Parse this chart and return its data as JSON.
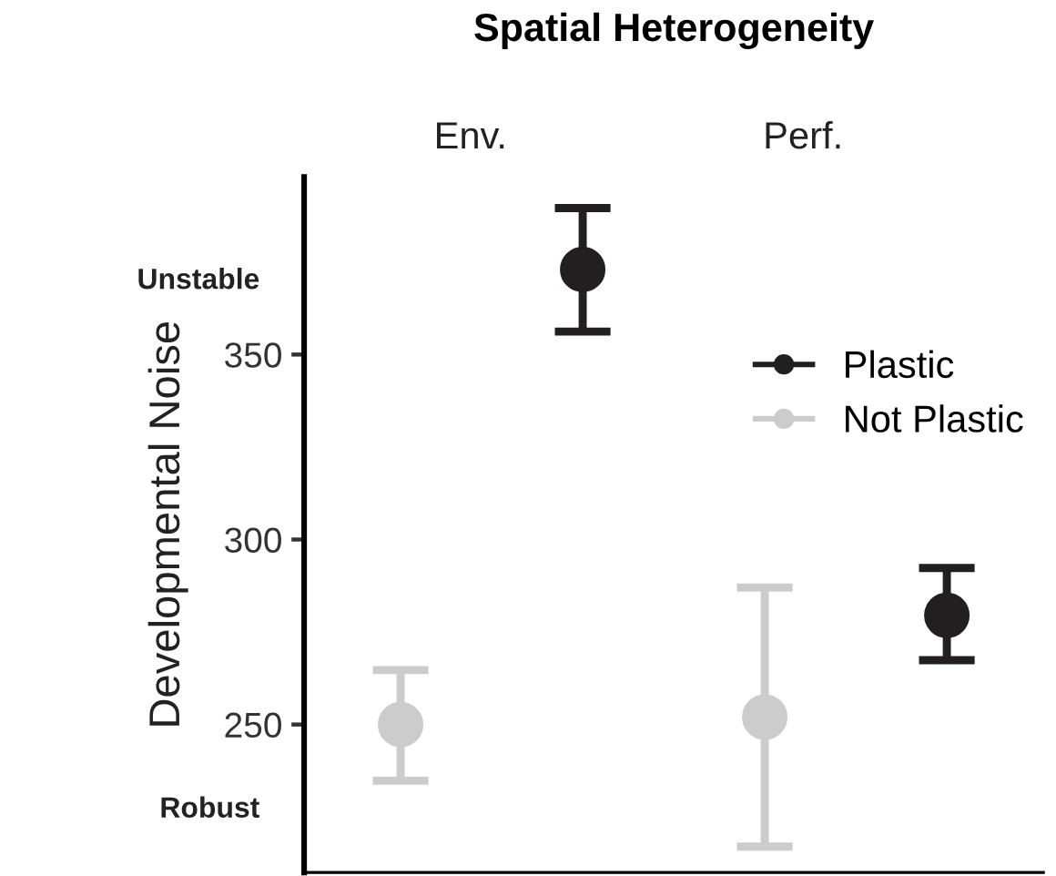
{
  "chart_data": {
    "type": "scatter",
    "title": "Spatial Heterogeneity",
    "ylabel": "Developmental Noise",
    "categories": [
      null,
      null,
      null,
      null
    ],
    "series": [
      {
        "name": "Plastic",
        "color": "#231f20",
        "values": [
          null,
          373,
          null,
          279.5
        ],
        "errors": [
          null,
          [
            356.2,
            389.6
          ],
          null,
          [
            267.4,
            292.3
          ]
        ]
      },
      {
        "name": "Not Plastic",
        "color": "#cccccc",
        "values": [
          250,
          null,
          252,
          null
        ],
        "errors": [
          [
            234.8,
            264.7
          ],
          null,
          [
            217,
            287
          ],
          null
        ]
      }
    ],
    "ylim": [
      210,
      398
    ],
    "yticks": [
      250,
      300,
      350
    ],
    "grid": false,
    "legend": "top right",
    "marker": "circle",
    "annotations": [
      "Unstable",
      "Robust",
      "Env.",
      "Perf."
    ]
  }
}
